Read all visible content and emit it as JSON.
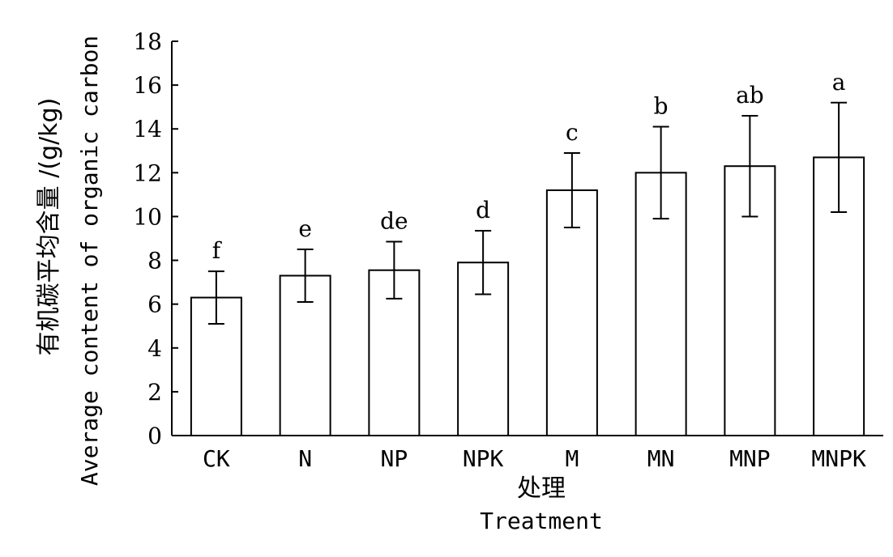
{
  "chart_data": {
    "type": "bar",
    "categories": [
      "CK",
      "N",
      "NP",
      "NPK",
      "M",
      "MN",
      "MNP",
      "MNPK"
    ],
    "series": [
      {
        "values": [
          6.3,
          7.3,
          7.55,
          7.9,
          11.2,
          12.0,
          12.3,
          12.7
        ],
        "error": [
          1.2,
          1.2,
          1.3,
          1.45,
          1.7,
          2.1,
          2.3,
          2.5
        ],
        "significance": [
          "f",
          "e",
          "de",
          "d",
          "c",
          "b",
          "ab",
          "a"
        ]
      }
    ],
    "xlabel_cn": "处理",
    "xlabel": "Treatment",
    "ylabel_cn": "有机碳平均含量 /(g/kg)",
    "ylabel": "Average content of organic carbon",
    "ylim": [
      0,
      18
    ],
    "yticks": [
      0,
      2,
      4,
      6,
      8,
      10,
      12,
      14,
      16,
      18
    ],
    "grid": false,
    "bar_fill": "#ffffff",
    "stroke_color": "#000000"
  }
}
